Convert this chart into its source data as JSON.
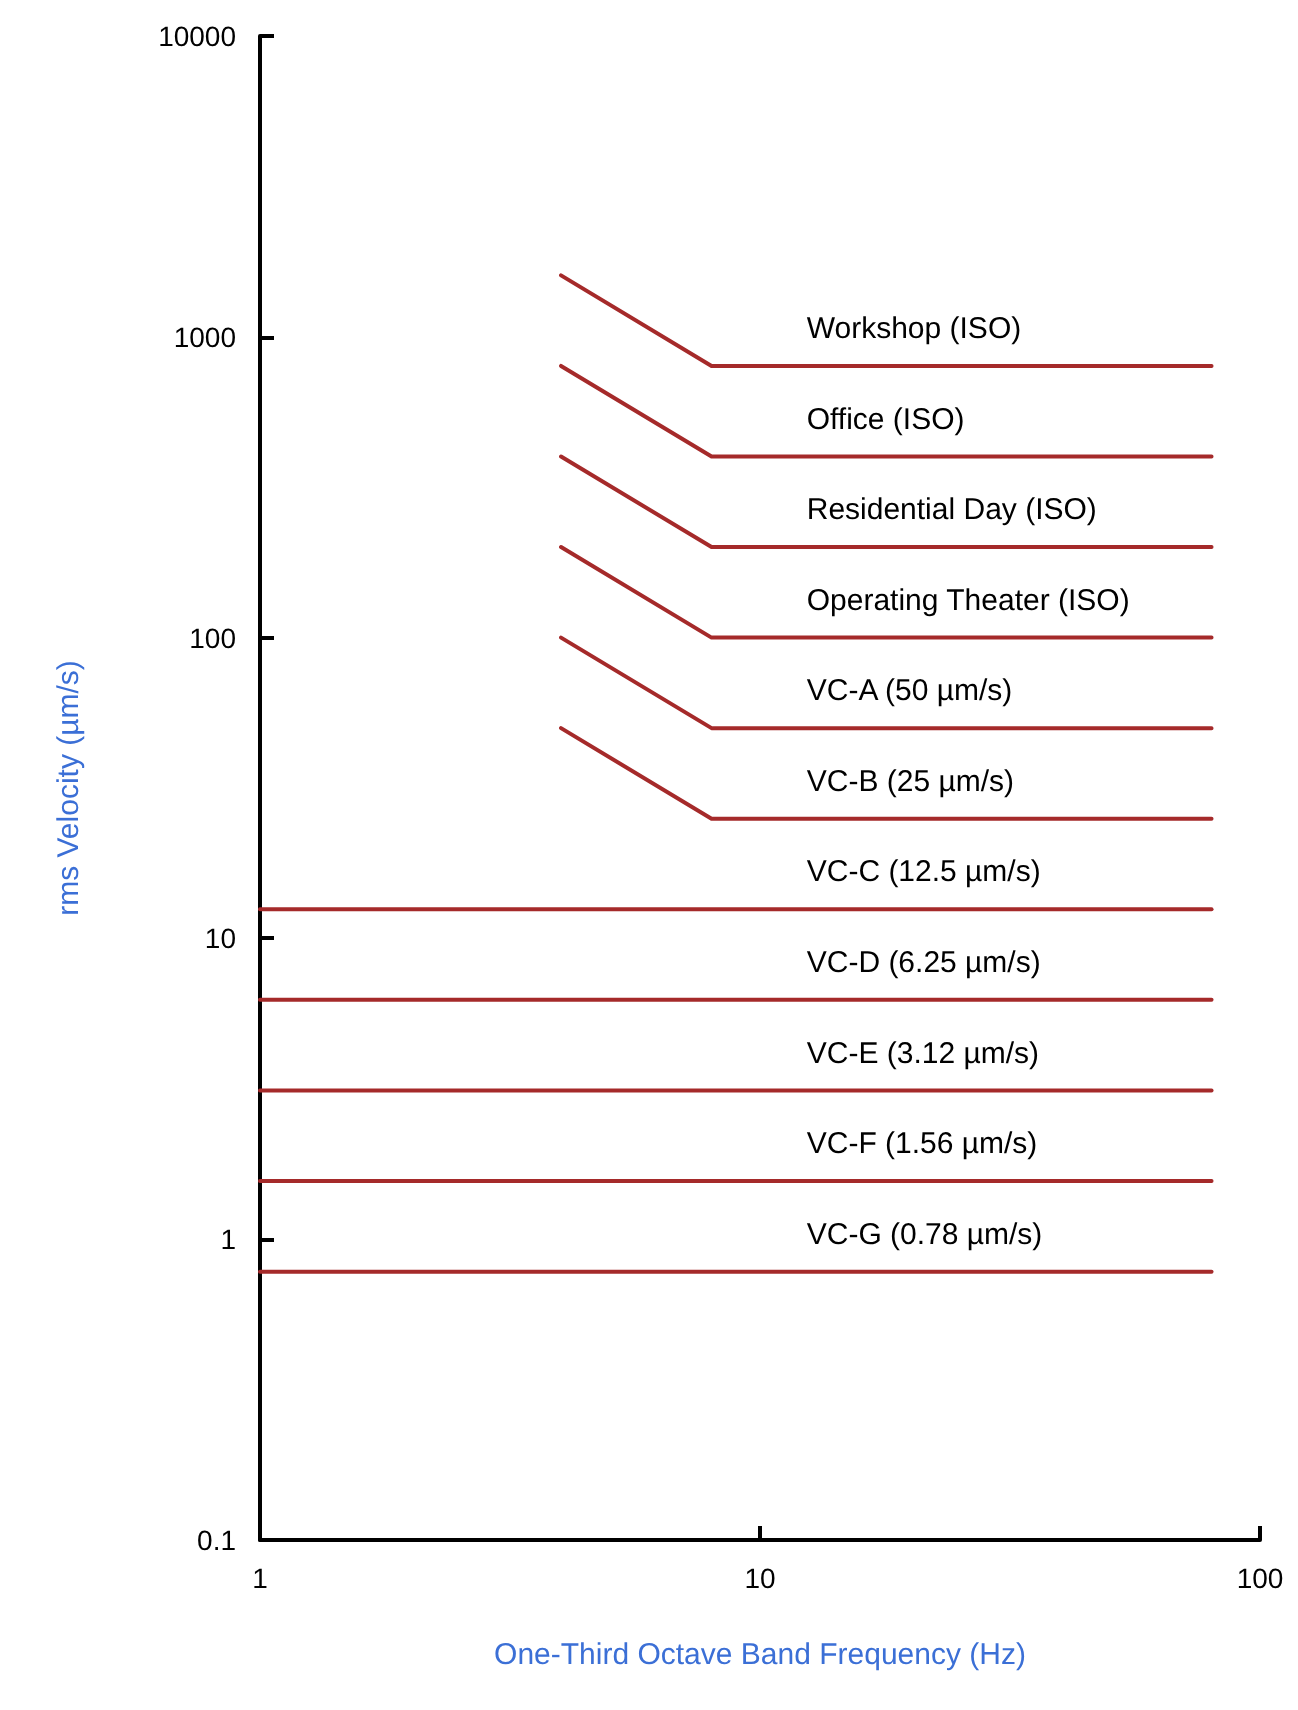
{
  "chart_data": {
    "type": "line",
    "xlabel": "One-Third Octave Band Frequency (Hz)",
    "ylabel": "rms Velocity (µm/s)",
    "log": "xy",
    "xlim": [
      1,
      100
    ],
    "ylim": [
      0.1,
      10000
    ],
    "xticks": [
      1,
      10,
      100
    ],
    "yticks": [
      0.1,
      1,
      10,
      100,
      1000,
      10000
    ],
    "grid": false,
    "legend": false,
    "marker": "none",
    "line_style": "solid",
    "series": [
      {
        "name": "Workshop (ISO)",
        "color": "#a52a2a",
        "x": [
          4,
          8,
          80
        ],
        "values": [
          1600,
          800,
          800
        ]
      },
      {
        "name": "Office (ISO)",
        "color": "#a52a2a",
        "x": [
          4,
          8,
          80
        ],
        "values": [
          800,
          400,
          400
        ]
      },
      {
        "name": "Residential Day (ISO)",
        "color": "#a52a2a",
        "x": [
          4,
          8,
          80
        ],
        "values": [
          400,
          200,
          200
        ]
      },
      {
        "name": "Operating Theater (ISO)",
        "color": "#a52a2a",
        "x": [
          4,
          8,
          80
        ],
        "values": [
          200,
          100,
          100
        ]
      },
      {
        "name": "VC-A (50 µm/s)",
        "color": "#a52a2a",
        "x": [
          4,
          8,
          80
        ],
        "values": [
          100,
          50,
          50
        ]
      },
      {
        "name": "VC-B (25 µm/s)",
        "color": "#a52a2a",
        "x": [
          4,
          8,
          80
        ],
        "values": [
          50,
          25,
          25
        ]
      },
      {
        "name": "VC-C (12.5 µm/s)",
        "color": "#a52a2a",
        "x": [
          1,
          80
        ],
        "values": [
          12.5,
          12.5
        ]
      },
      {
        "name": "VC-D (6.25 µm/s)",
        "color": "#a52a2a",
        "x": [
          1,
          80
        ],
        "values": [
          6.25,
          6.25
        ]
      },
      {
        "name": "VC-E (3.12 µm/s)",
        "color": "#a52a2a",
        "x": [
          1,
          80
        ],
        "values": [
          3.12,
          3.12
        ]
      },
      {
        "name": "VC-F (1.56 µm/s)",
        "color": "#a52a2a",
        "x": [
          1,
          80
        ],
        "values": [
          1.56,
          1.56
        ]
      },
      {
        "name": "VC-G (0.78 µm/s)",
        "color": "#a52a2a",
        "x": [
          1,
          80
        ],
        "values": [
          0.78,
          0.78
        ]
      }
    ]
  }
}
